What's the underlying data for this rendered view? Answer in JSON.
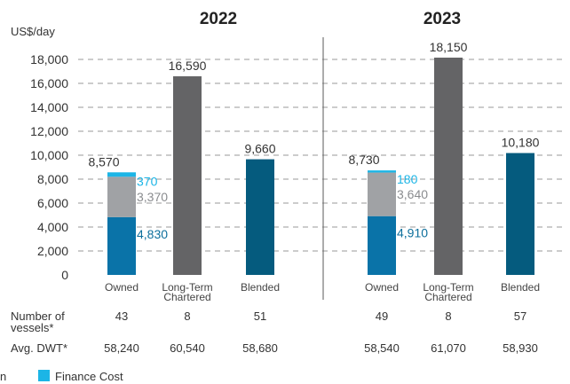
{
  "chart_data": {
    "type": "bar",
    "ylabel": "US$/day",
    "ylim": [
      0,
      18000
    ],
    "yticks": [
      "0",
      "2,000",
      "4,000",
      "6,000",
      "8,000",
      "10,000",
      "12,000",
      "14,000",
      "16,000",
      "18,000"
    ],
    "ytick_values": [
      0,
      2000,
      4000,
      6000,
      8000,
      10000,
      12000,
      14000,
      16000,
      18000
    ],
    "grid": true,
    "colors": {
      "owned_base": "#0a73a8",
      "owned_mid": "#a0a2a5",
      "finance": "#1cb5e6",
      "long_term": "#646466",
      "blended": "#055b7e",
      "label_blue": "#0d6f9c",
      "label_cyan": "#1cb5e6",
      "label_gray": "#8a8c8f",
      "text": "#333333"
    },
    "panels": [
      {
        "title": "2022",
        "categories": [
          "Owned",
          "Long-Term\nChartered",
          "Blended"
        ],
        "owned": {
          "base": 4830,
          "mid": 3370,
          "finance": 370,
          "total": 8570,
          "base_label": "4,830",
          "mid_label": "3,370",
          "finance_label": "370",
          "total_label": "8,570"
        },
        "long_term": {
          "value": 16590,
          "label": "16,590"
        },
        "blended": {
          "value": 9660,
          "label": "9,660"
        },
        "vessels": [
          "43",
          "8",
          "51"
        ],
        "dwt": [
          "58,240",
          "60,540",
          "58,680"
        ]
      },
      {
        "title": "2023",
        "categories": [
          "Owned",
          "Long-Term\nChartered",
          "Blended"
        ],
        "owned": {
          "base": 4910,
          "mid": 3640,
          "finance": 180,
          "total": 8730,
          "base_label": "4,910",
          "mid_label": "3,640",
          "finance_label": "180",
          "total_label": "8,730"
        },
        "long_term": {
          "value": 18150,
          "label": "18,150"
        },
        "blended": {
          "value": 10180,
          "label": "10,180"
        },
        "vessels": [
          "49",
          "8",
          "57"
        ],
        "dwt": [
          "58,540",
          "61,070",
          "58,930"
        ]
      }
    ],
    "row_labels": {
      "vessels": "Number of\nvessels*",
      "dwt": "Avg. DWT*"
    },
    "legend": [
      {
        "name": "n",
        "color_key": "",
        "partial": true
      },
      {
        "name": "Finance Cost",
        "color_key": "finance"
      }
    ]
  }
}
